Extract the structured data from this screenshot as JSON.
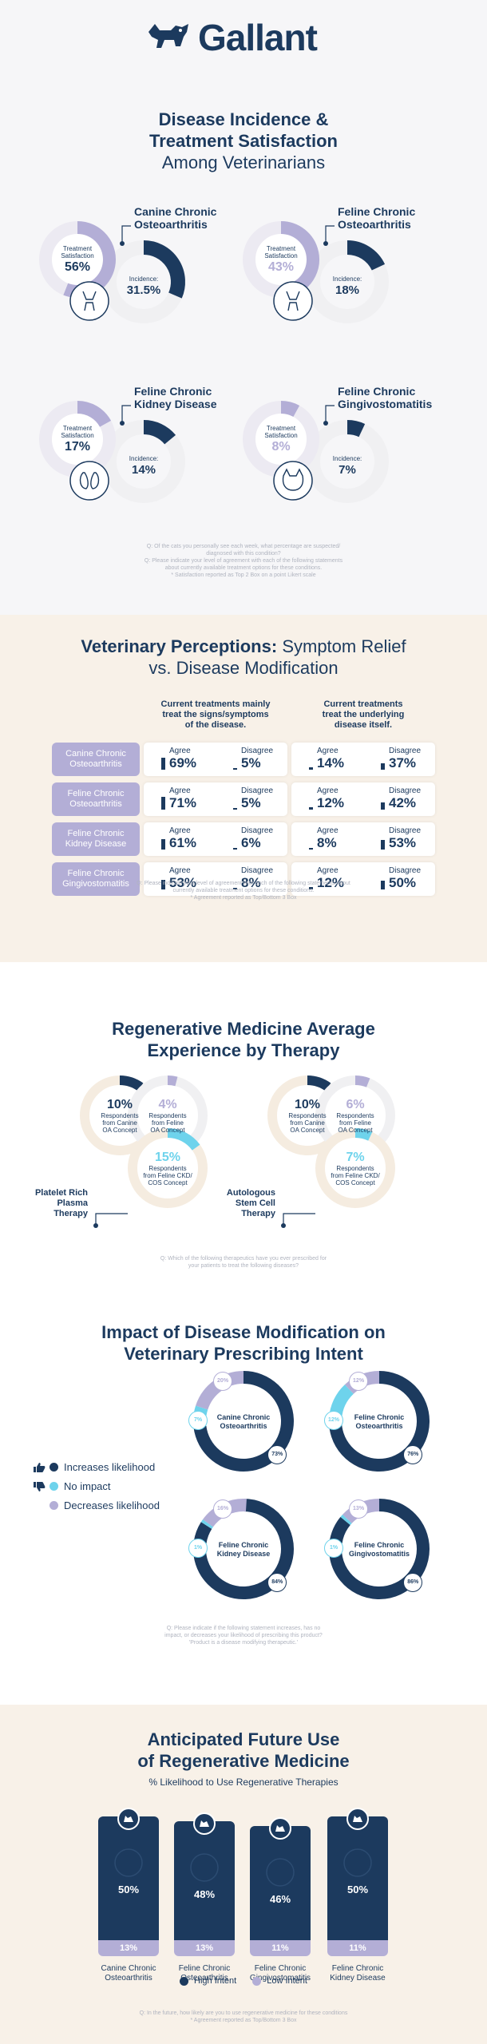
{
  "brand": {
    "name": "Gallant"
  },
  "colors": {
    "navy": "#1c3a5e",
    "lavender": "#b3aed6",
    "light_blue": "#6ed3ec",
    "cream": "#f8f1e8",
    "ring_grey": "#f0f0f2"
  },
  "section1": {
    "title_line1": "Disease Incidence &",
    "title_line2": "Treatment Satisfaction",
    "title_line3": "Among Veterinarians",
    "footnote": [
      "Q: Of the cats you personally see each week, what percentage are suspected/",
      "diagnosed with this condition?",
      "Q: Please indicate your level of agreement with each of the following statements",
      "about currently available treatment options for these conditions.",
      "* Satisfaction reported as Top 2 Box on a point Likert scale"
    ]
  },
  "section2": {
    "title_bold": "Veterinary Perceptions:",
    "title_light1": "Symptom Relief",
    "title_light2": "vs. Disease Modification",
    "col1_header": [
      "Current treatments mainly",
      "treat the signs/symptoms",
      "of the disease."
    ],
    "col2_header": [
      "Current treatments",
      "treat the underlying",
      "disease itself."
    ],
    "agree_label": "Agree",
    "disagree_label": "Disagree",
    "footnote": [
      "Q: Please indicate your level of agreement with each of the following statements about",
      "currently available treatment options for these conditions.",
      "* Agreement reported as Top/Bottom 3 Box"
    ]
  },
  "section3": {
    "title_line1": "Regenerative Medicine Average",
    "title_line2": "Experience by Therapy",
    "footnote": [
      "Q: Which of the following therapeutics have you ever prescribed for",
      "your patients to treat the following diseases?"
    ]
  },
  "section4": {
    "title_line1": "Impact of Disease Modification on",
    "title_line2": "Veterinary Prescribing Intent",
    "legend": [
      "Increases likelihood",
      "No impact",
      "Decreases likelihood"
    ],
    "footnote": [
      "Q: Please indicate if the following statement increases, has no",
      "impact, or decreases your likelihood of prescribing this product?",
      "'Product is a disease modifying therapeutic.'"
    ]
  },
  "section5": {
    "title_line1": "Anticipated Future Use",
    "title_line2": "of Regenerative Medicine",
    "subtitle": "% Likelihood to Use Regenerative Therapies",
    "legend_high": "High Intent",
    "legend_low": "Low Intent",
    "footnote": [
      "Q: In the future, how likely are you to use regenerative medicine for these conditions",
      "* Agreement reported as Top/Bottom 3 Box"
    ]
  },
  "chart_data": [
    {
      "type": "donut",
      "title": "Disease Incidence & Treatment Satisfaction Among Veterinarians",
      "satisfaction_label": "Treatment Satisfaction",
      "incidence_label": "Incidence:",
      "series": [
        {
          "name": "Canine Chronic Osteoarthritis",
          "satisfaction": 56,
          "incidence": 31.5,
          "satisfaction_text": "56%",
          "incidence_text": "31.5%"
        },
        {
          "name": "Feline Chronic Osteoarthritis",
          "satisfaction": 43,
          "incidence": 18,
          "satisfaction_text": "43%",
          "incidence_text": "18%"
        },
        {
          "name": "Feline Chronic Kidney Disease",
          "satisfaction": 17,
          "incidence": 14,
          "satisfaction_text": "17%",
          "incidence_text": "14%"
        },
        {
          "name": "Feline Chronic Gingivostomatitis",
          "satisfaction": 8,
          "incidence": 7,
          "satisfaction_text": "8%",
          "incidence_text": "7%"
        }
      ]
    },
    {
      "type": "table",
      "title": "Veterinary Perceptions: Symptom Relief vs. Disease Modification",
      "rows": [
        {
          "name": "Canine Chronic Osteoarthritis",
          "symptoms_agree": "69%",
          "symptoms_disagree": "5%",
          "underlying_agree": "14%",
          "underlying_disagree": "37%"
        },
        {
          "name": "Feline Chronic Osteoarthritis",
          "symptoms_agree": "71%",
          "symptoms_disagree": "5%",
          "underlying_agree": "12%",
          "underlying_disagree": "42%"
        },
        {
          "name": "Feline Chronic Kidney Disease",
          "symptoms_agree": "61%",
          "symptoms_disagree": "6%",
          "underlying_agree": "8%",
          "underlying_disagree": "53%"
        },
        {
          "name": "Feline Chronic Gingivostomatitis",
          "symptoms_agree": "53%",
          "symptoms_disagree": "8%",
          "underlying_agree": "12%",
          "underlying_disagree": "50%"
        }
      ]
    },
    {
      "type": "donut",
      "title": "Regenerative Medicine Average Experience by Therapy",
      "groups": [
        {
          "therapy": [
            "Platelet Rich",
            "Plasma",
            "Therapy"
          ],
          "items": [
            {
              "value": 10,
              "text": "10%",
              "label": [
                "Respondents",
                "from Canine",
                "OA Concept"
              ],
              "color": "#1c3a5e"
            },
            {
              "value": 4,
              "text": "4%",
              "label": [
                "Respondents",
                "from Feline",
                "OA Concept"
              ],
              "color": "#b3aed6"
            },
            {
              "value": 15,
              "text": "15%",
              "label": [
                "Respondents",
                "from Feline CKD/",
                "COS Concept"
              ],
              "color": "#6ed3ec"
            }
          ]
        },
        {
          "therapy": [
            "Autologous",
            "Stem Cell",
            "Therapy"
          ],
          "items": [
            {
              "value": 10,
              "text": "10%",
              "label": [
                "Respondents",
                "from Canine",
                "OA Concept"
              ],
              "color": "#1c3a5e"
            },
            {
              "value": 6,
              "text": "6%",
              "label": [
                "Respondents",
                "from Feline",
                "OA Concept"
              ],
              "color": "#b3aed6"
            },
            {
              "value": 7,
              "text": "7%",
              "label": [
                "Respondents",
                "from Feline CKD/",
                "COS Concept"
              ],
              "color": "#6ed3ec"
            }
          ]
        }
      ]
    },
    {
      "type": "donut",
      "title": "Impact of Disease Modification on Veterinary Prescribing Intent",
      "series": [
        {
          "name": [
            "Canine Chronic",
            "Osteoarthritis"
          ],
          "increase": 73,
          "no_impact": 7,
          "decrease": 20,
          "increase_text": "73%",
          "no_impact_text": "7%",
          "decrease_text": "20%"
        },
        {
          "name": [
            "Feline Chronic",
            "Osteoarthritis"
          ],
          "increase": 76,
          "no_impact": 12,
          "decrease": 12,
          "increase_text": "76%",
          "no_impact_text": "12%",
          "decrease_text": "12%"
        },
        {
          "name": [
            "Feline Chronic",
            "Kidney Disease"
          ],
          "increase": 84,
          "no_impact": 1,
          "decrease": 16,
          "increase_text": "84%",
          "no_impact_text": "1%",
          "decrease_text": "16%"
        },
        {
          "name": [
            "Feline Chronic",
            "Gingivostomatitis"
          ],
          "increase": 86,
          "no_impact": 1,
          "decrease": 13,
          "increase_text": "86%",
          "no_impact_text": "1%",
          "decrease_text": "13%"
        }
      ]
    },
    {
      "type": "bar",
      "title": "Anticipated Future Use of Regenerative Medicine",
      "subtitle": "% Likelihood to Use Regenerative Therapies",
      "categories": [
        [
          "Canine Chronic",
          "Osteoarthritis"
        ],
        [
          "Feline Chronic",
          "Osteoarthritis"
        ],
        [
          "Feline Chronic",
          "Gingivostomatitis"
        ],
        [
          "Feline Chronic",
          "Kidney Disease"
        ]
      ],
      "series": [
        {
          "name": "High Intent",
          "values": [
            50,
            48,
            46,
            50
          ],
          "texts": [
            "50%",
            "48%",
            "46%",
            "50%"
          ]
        },
        {
          "name": "Low Intent",
          "values": [
            13,
            13,
            11,
            11
          ],
          "texts": [
            "13%",
            "13%",
            "11%",
            "11%"
          ]
        }
      ]
    }
  ]
}
